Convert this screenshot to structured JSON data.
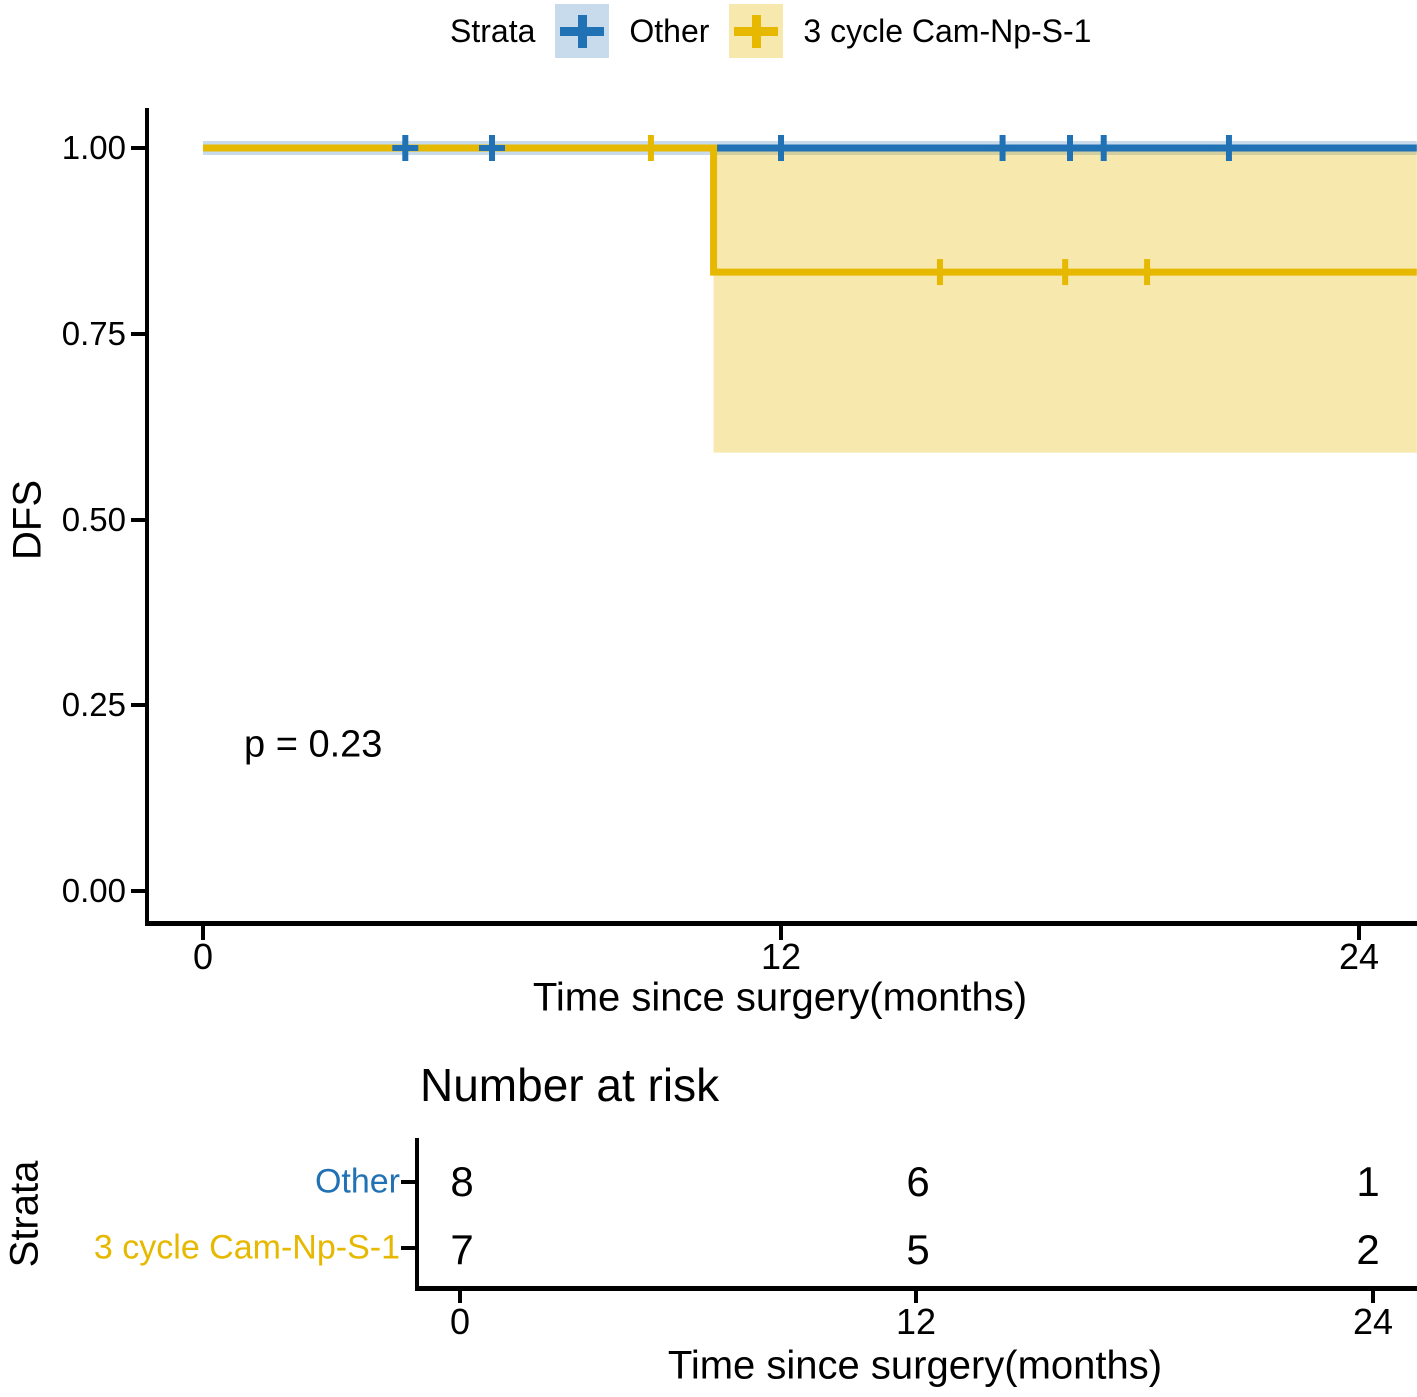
{
  "legend": {
    "title": "Strata",
    "items": [
      {
        "label": "Other",
        "color": "#2171B5",
        "fill": "rgba(33,113,181,0.25)"
      },
      {
        "label": "3 cycle Cam-Np-S-1",
        "color": "#E7B800",
        "fill": "rgba(231,184,0,0.32)"
      }
    ]
  },
  "y_axis": {
    "title": "DFS",
    "ticks": [
      "1.00",
      "0.75",
      "0.50",
      "0.25",
      "0.00"
    ]
  },
  "x_axis": {
    "title": "Time since surgery(months)",
    "ticks": [
      "0",
      "12",
      "24"
    ]
  },
  "annotation": {
    "p_value": "p = 0.23"
  },
  "risk_table": {
    "title": "Number at risk",
    "strata_label": "Strata",
    "x_ticks": [
      "0",
      "12",
      "24"
    ],
    "x_title": "Time since surgery(months)",
    "rows": [
      {
        "label": "Other",
        "color": "#2171B5",
        "values": [
          "8",
          "6",
          "1"
        ]
      },
      {
        "label": "3 cycle Cam-Np-S-1",
        "color": "#E7B800",
        "values": [
          "7",
          "5",
          "2"
        ]
      }
    ]
  },
  "chart_data": {
    "type": "line",
    "subtype": "kaplan-meier-step",
    "title": "",
    "xlabel": "Time since surgery(months)",
    "ylabel": "DFS",
    "xlim": [
      0,
      25.2
    ],
    "ylim": [
      0,
      1
    ],
    "x_ticks": [
      0,
      12,
      24
    ],
    "y_ticks": [
      1.0,
      0.75,
      0.5,
      0.25,
      0.0
    ],
    "grid": false,
    "legend_position": "top",
    "p_value": "p = 0.23",
    "series": [
      {
        "name": "Other",
        "color": "#2171B5",
        "ci_fill": "rgba(33,113,181,0.25)",
        "steps": [
          [
            0,
            1.0
          ],
          [
            25.2,
            1.0
          ]
        ],
        "censors": [
          [
            4.2,
            1.0
          ],
          [
            6.0,
            1.0
          ],
          [
            12.0,
            1.0
          ],
          [
            16.6,
            1.0
          ],
          [
            18.0,
            1.0
          ],
          [
            18.7,
            1.0
          ],
          [
            21.3,
            1.0
          ]
        ],
        "ci": {
          "t_from": 0,
          "t_to": 25.2,
          "upper": 1.0,
          "lower": 1.0
        }
      },
      {
        "name": "3 cycle Cam-Np-S-1",
        "color": "#E7B800",
        "ci_fill": "rgba(231,184,0,0.32)",
        "steps": [
          [
            0,
            1.0
          ],
          [
            10.6,
            1.0
          ],
          [
            10.6,
            0.833
          ],
          [
            25.2,
            0.833
          ]
        ],
        "censors": [
          [
            9.3,
            1.0
          ],
          [
            15.3,
            0.833
          ],
          [
            17.9,
            0.833
          ],
          [
            19.6,
            0.833
          ]
        ],
        "ci": {
          "t_from": 10.6,
          "t_to": 25.2,
          "upper": 1.0,
          "lower": 0.59
        }
      }
    ],
    "number_at_risk": {
      "times": [
        0,
        12,
        24
      ],
      "rows": [
        {
          "name": "Other",
          "counts": [
            8,
            6,
            1
          ]
        },
        {
          "name": "3 cycle Cam-Np-S-1",
          "counts": [
            7,
            5,
            2
          ]
        }
      ]
    }
  }
}
